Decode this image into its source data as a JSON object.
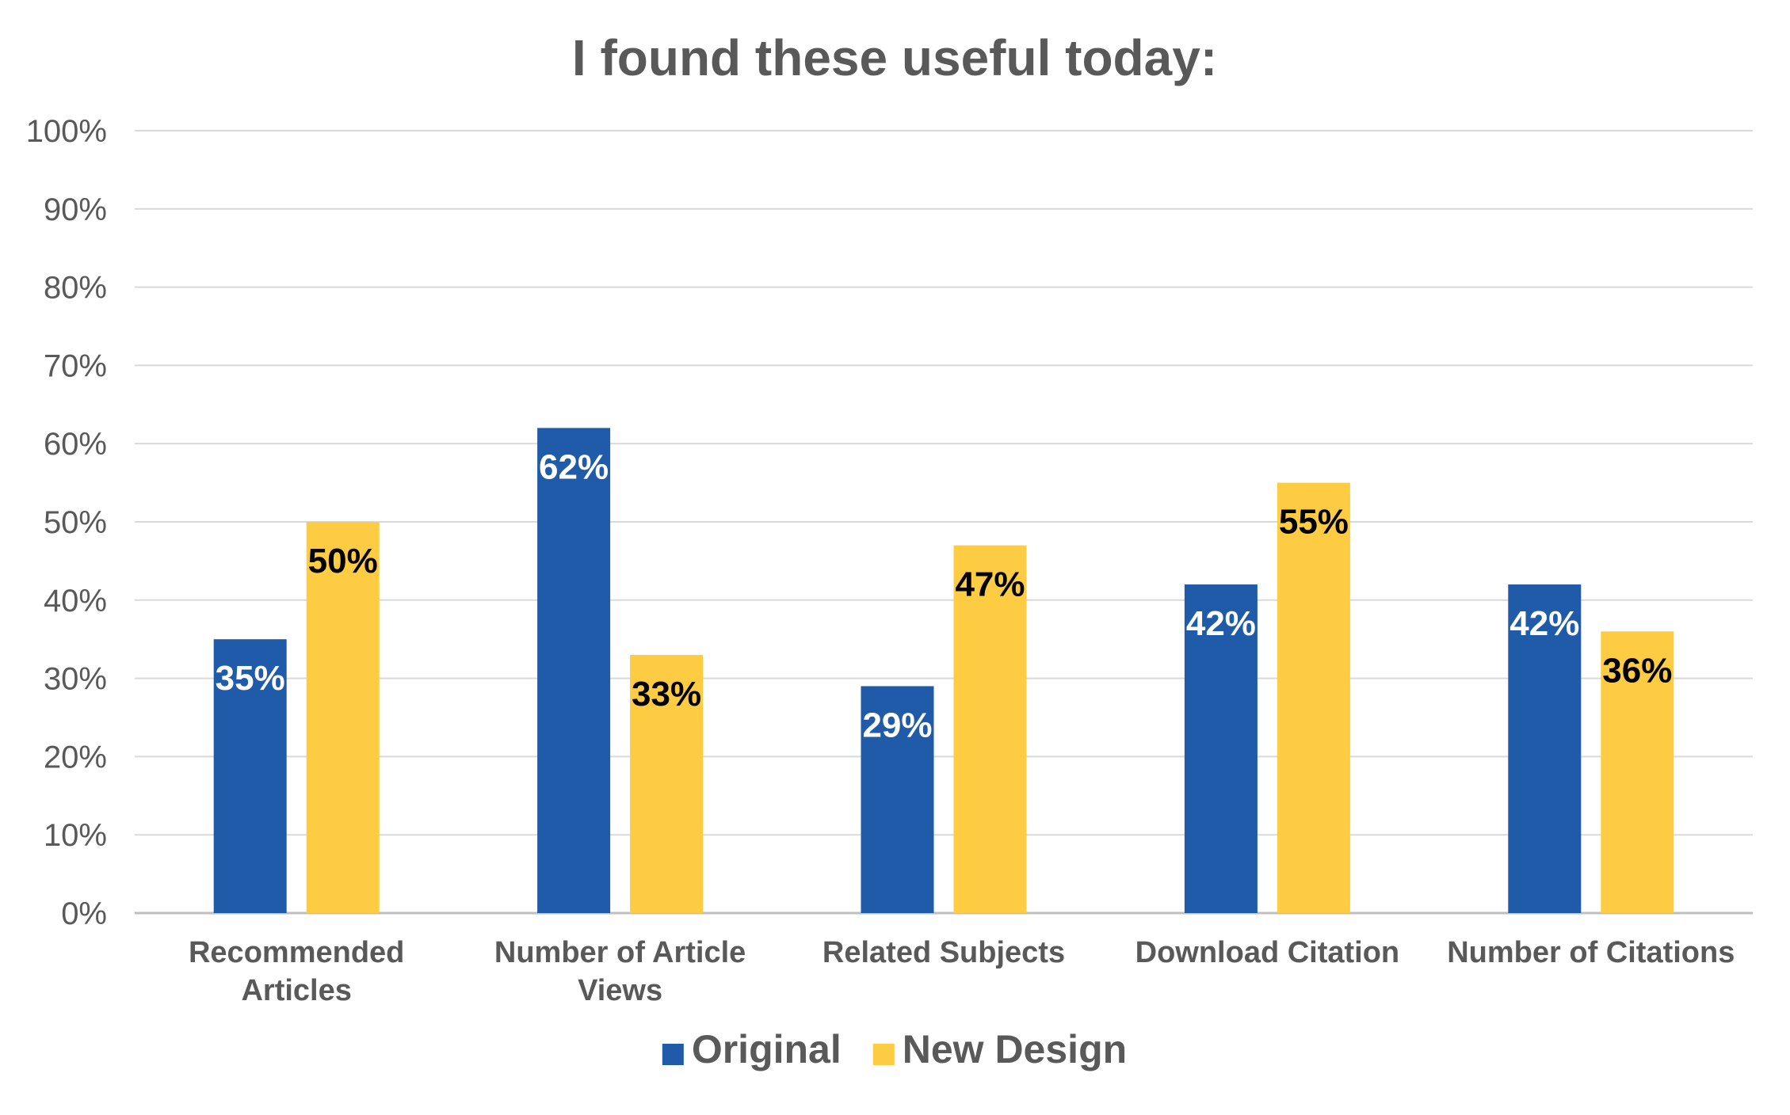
{
  "chart_data": {
    "type": "bar",
    "title": "I found these useful today:",
    "xlabel": "",
    "ylabel": "",
    "ylim": [
      0,
      100
    ],
    "yticks": [
      "0%",
      "10%",
      "20%",
      "30%",
      "40%",
      "50%",
      "60%",
      "70%",
      "80%",
      "90%",
      "100%"
    ],
    "categories": [
      [
        "Recommended",
        "Articles"
      ],
      [
        "Number of Article",
        "Views"
      ],
      [
        "Related Subjects"
      ],
      [
        "Download Citation"
      ],
      [
        "Number of Citations"
      ]
    ],
    "series": [
      {
        "name": "Original",
        "color": "#1f5ba8",
        "label_color": "#ffffff",
        "values": [
          35,
          62,
          29,
          42,
          42
        ],
        "labels": [
          "35%",
          "62%",
          "29%",
          "42%",
          "42%"
        ]
      },
      {
        "name": "New Design",
        "color": "#fdcc43",
        "label_color": "#000000",
        "values": [
          50,
          33,
          47,
          55,
          36
        ],
        "labels": [
          "50%",
          "33%",
          "47%",
          "55%",
          "36%"
        ]
      }
    ],
    "grid": true,
    "legend": "bottom-center"
  }
}
